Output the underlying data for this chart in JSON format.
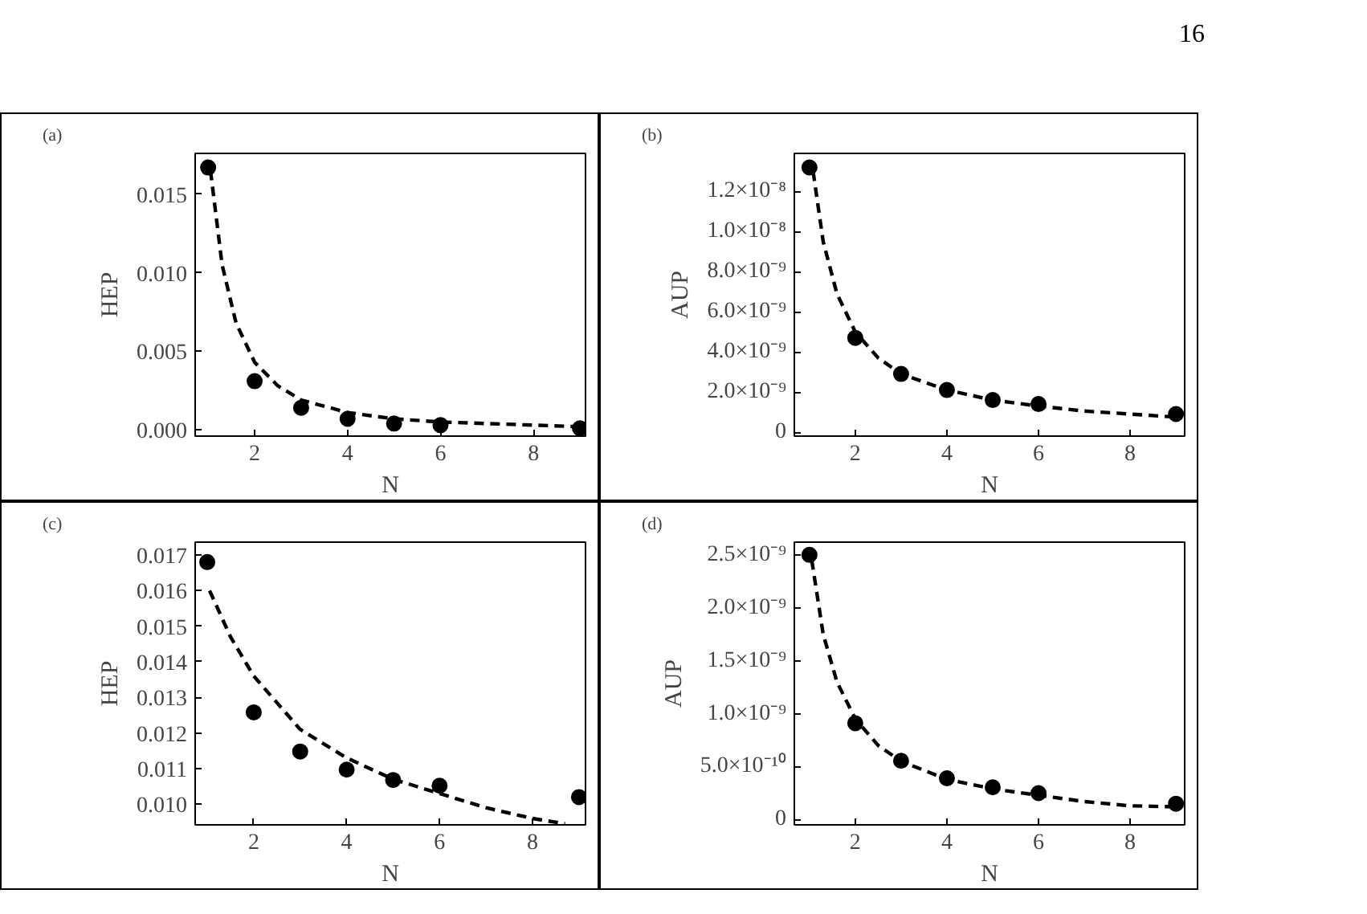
{
  "chart_data": [
    {
      "type": "scatter",
      "title": "(a)",
      "xlabel": "N",
      "ylabel": "HEP",
      "annotations": [
        "16"
      ],
      "xlim": [
        0.72,
        9.12
      ],
      "ylim": [
        -0.0004,
        0.0176
      ],
      "xticks": [
        2,
        4,
        6,
        8
      ],
      "yticks": [
        {
          "value": 0,
          "label": "0.000"
        },
        {
          "value": 0.005,
          "label": "0.005"
        },
        {
          "value": 0.01,
          "label": "0.010"
        },
        {
          "value": 0.015,
          "label": "0.015"
        }
      ],
      "grid": false,
      "marker": "circle",
      "series": [
        {
          "color": "#000000",
          "x": [
            1,
            2,
            3,
            4,
            5,
            6,
            9
          ],
          "values": [
            0.0167,
            0.0031,
            0.0014,
            0.0007,
            0.0004,
            0.0003,
            0.0001
          ]
        },
        {
          "type": "line",
          "line_style": "dashed",
          "marker": "none",
          "color": "#000000",
          "x": [
            1.05,
            1.3,
            1.6,
            2,
            2.5,
            3,
            4,
            5,
            6,
            7,
            8,
            9
          ],
          "values": [
            0.0165,
            0.0105,
            0.0068,
            0.0043,
            0.0028,
            0.0019,
            0.0011,
            0.0007,
            0.0005,
            0.0004,
            0.0003,
            0.0002
          ]
        }
      ]
    },
    {
      "type": "scatter",
      "title": "(b)",
      "xlabel": "N",
      "ylabel": "AUP",
      "xlim": [
        0.67,
        9.19
      ],
      "ylim": [
        -2e-10,
        1.39e-08
      ],
      "xticks": [
        2,
        4,
        6,
        8
      ],
      "yticks": [
        0,
        {
          "value": 2e-09,
          "label": "2.0×10⁻⁹"
        },
        {
          "value": 4e-09,
          "label": "4.0×10⁻⁹"
        },
        {
          "value": 6e-09,
          "label": "6.0×10⁻⁹"
        },
        {
          "value": 8e-09,
          "label": "8.0×10⁻⁹"
        },
        {
          "value": 1e-08,
          "label": "1.0×10⁻⁸"
        },
        {
          "value": 1.2e-08,
          "label": "1.2×10⁻⁸"
        }
      ],
      "grid": false,
      "marker": "circle",
      "series": [
        {
          "color": "#000000",
          "x": [
            1,
            2,
            3,
            4,
            5,
            6,
            9
          ],
          "values": [
            1.32e-08,
            4.7e-09,
            2.9e-09,
            2.1e-09,
            1.6e-09,
            1.4e-09,
            9e-10
          ]
        },
        {
          "type": "line",
          "line_style": "dashed",
          "marker": "none",
          "color": "#000000",
          "x": [
            1.08,
            1.3,
            1.6,
            2,
            2.5,
            3,
            4,
            5,
            6,
            7,
            8,
            9
          ],
          "values": [
            1.3e-08,
            9.5e-09,
            6.9e-09,
            5e-09,
            3.7e-09,
            2.9e-09,
            2.1e-09,
            1.6e-09,
            1.3e-09,
            1.05e-09,
            9e-10,
            7.5e-10
          ]
        }
      ]
    },
    {
      "type": "scatter",
      "title": "(c)",
      "xlabel": "N",
      "ylabel": "HEP",
      "xlim": [
        0.74,
        9.14
      ],
      "ylim": [
        0.00942,
        0.01736
      ],
      "xticks": [
        2,
        4,
        6,
        8
      ],
      "yticks": [
        {
          "value": 0.01,
          "label": "0.010"
        },
        0.011,
        0.012,
        0.013,
        0.014,
        0.015,
        0.016,
        0.017
      ],
      "grid": false,
      "marker": "circle",
      "series": [
        {
          "color": "#000000",
          "x": [
            1,
            2,
            3,
            4,
            5,
            6,
            9
          ],
          "values": [
            0.0168,
            0.01258,
            0.01148,
            0.01097,
            0.01068,
            0.01052,
            0.0102
          ]
        },
        {
          "type": "line",
          "line_style": "dashed",
          "marker": "none",
          "color": "#000000",
          "x": [
            1.05,
            1.5,
            2,
            3,
            4,
            5,
            6,
            7,
            8,
            8.7
          ],
          "values": [
            0.016,
            0.0147,
            0.0136,
            0.0121,
            0.0113,
            0.0107,
            0.0103,
            0.0099,
            0.0096,
            0.00945
          ]
        }
      ]
    },
    {
      "type": "scatter",
      "title": "(d)",
      "xlabel": "N",
      "ylabel": "AUP",
      "xlim": [
        0.67,
        9.19
      ],
      "ylim": [
        -5e-11,
        2.62e-09
      ],
      "xticks": [
        2,
        4,
        6,
        8
      ],
      "yticks": [
        0,
        {
          "value": 5e-10,
          "label": "5.0×10⁻¹⁰"
        },
        {
          "value": 1e-09,
          "label": "1.0×10⁻⁹"
        },
        {
          "value": 1.5e-09,
          "label": "1.5×10⁻⁹"
        },
        {
          "value": 2e-09,
          "label": "2.0×10⁻⁹"
        },
        {
          "value": 2.5e-09,
          "label": "2.5×10⁻⁹"
        }
      ],
      "grid": false,
      "marker": "circle",
      "series": [
        {
          "color": "#000000",
          "x": [
            1,
            2,
            3,
            4,
            5,
            6,
            9
          ],
          "values": [
            2.5e-09,
            9.1e-10,
            5.55e-10,
            3.9e-10,
            3.05e-10,
            2.5e-10,
            1.5e-10
          ]
        },
        {
          "type": "line",
          "line_style": "dashed",
          "marker": "none",
          "color": "#000000",
          "x": [
            1.05,
            1.3,
            1.6,
            2,
            2.5,
            3,
            4,
            5,
            6,
            7,
            8,
            9
          ],
          "values": [
            2.45e-09,
            1.75e-09,
            1.3e-09,
            9.5e-10,
            7e-10,
            5.5e-10,
            3.8e-10,
            2.9e-10,
            2.3e-10,
            1.7e-10,
            1.3e-10,
            1.2e-10
          ]
        }
      ]
    }
  ]
}
